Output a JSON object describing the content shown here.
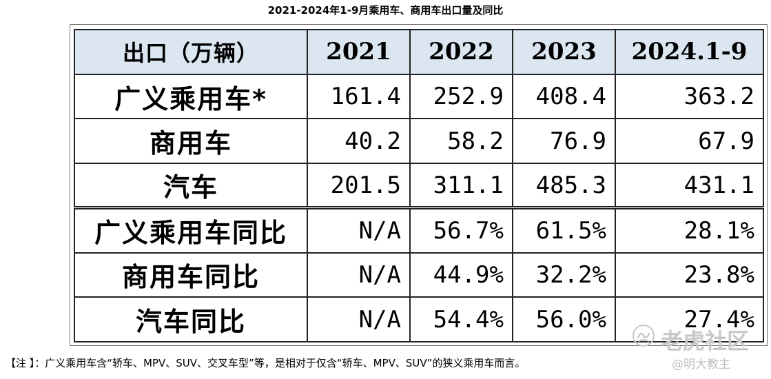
{
  "title": "2021-2024年1-9月乘用车、商用车出口量及同比",
  "table": {
    "headers": [
      "出口（万辆）",
      "2021",
      "2022",
      "2023",
      "2024.1-9"
    ],
    "rows": [
      {
        "label": "广义乘用车*",
        "values": [
          "161.4",
          "252.9",
          "408.4",
          "363.2"
        ]
      },
      {
        "label": "商用车",
        "values": [
          "40.2",
          "58.2",
          "76.9",
          "67.9"
        ]
      },
      {
        "label": "汽车",
        "values": [
          "201.5",
          "311.1",
          "485.3",
          "431.1"
        ]
      },
      {
        "label": "广义乘用车同比",
        "values": [
          "N/A",
          "56.7%",
          "61.5%",
          "28.1%"
        ]
      },
      {
        "label": "商用车同比",
        "values": [
          "N/A",
          "44.9%",
          "32.2%",
          "23.8%"
        ]
      },
      {
        "label": "汽车同比",
        "values": [
          "N/A",
          "54.4%",
          "56.0%",
          "27.4%"
        ]
      }
    ]
  },
  "note": "【注 】：广义乘用车含“轿车、MPV、SUV、交叉车型”等，是相对于仅含“轿车、MPV、SUV”的狭义乘用车而言。",
  "watermark": {
    "main": "老虎社区",
    "user": "@明大教主",
    "icon": "tiger-logo-icon"
  },
  "colors": {
    "header_bg": "#dce6f1",
    "border": "#222222",
    "watermark": "#c8c8c8"
  }
}
